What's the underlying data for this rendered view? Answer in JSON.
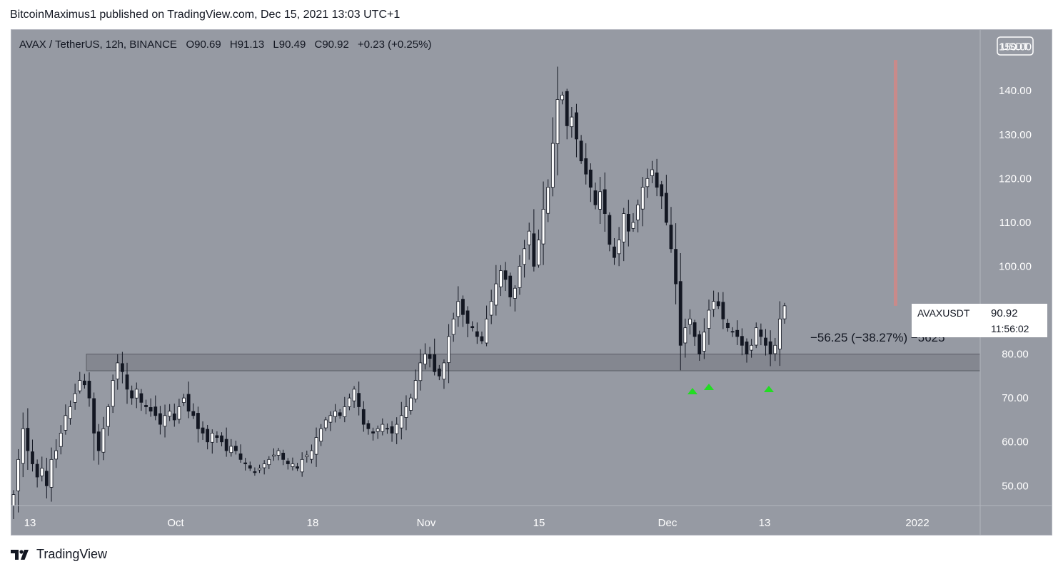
{
  "header": {
    "published_text": "BitcoinMaximus1 published on TradingView.com, Dec 15, 2021 13:03 UTC+1"
  },
  "legend": {
    "symbol": "AVAX / TetherUS, 12h, BINANCE",
    "o_label": "O",
    "o": "90.69",
    "h_label": "H",
    "h": "91.13",
    "l_label": "L",
    "l": "90.49",
    "c_label": "C",
    "c": "90.92",
    "change": "+0.23 (+0.25%)"
  },
  "currency_badge": "USDT",
  "price_tag": {
    "symbol": "AVAXUSDT",
    "price": "90.92",
    "countdown": "11:56:02"
  },
  "measure_label": "−56.25 (−38.27%) −5625",
  "footer": {
    "brand": "TradingView"
  },
  "colors": {
    "background": "#969aa3",
    "candle": "#131722",
    "candle_up_fill": "#ffffff",
    "support_zone": "#7d8089",
    "measure_bar": "#c98a8a",
    "support_arrow": "#22dd22"
  },
  "chart_data": {
    "type": "candlestick",
    "title": "AVAX / TetherUS, 12h, BINANCE",
    "ylim": [
      45.5,
      154
    ],
    "y_ticks": [
      "150.00",
      "140.00",
      "130.00",
      "120.00",
      "110.00",
      "100.00",
      "80.00",
      "70.00",
      "60.00",
      "50.00"
    ],
    "x_ticks": [
      "13",
      "Oct",
      "18",
      "Nov",
      "15",
      "Dec",
      "13",
      "2022"
    ],
    "support_zone": {
      "low": 76.2,
      "high": 80.0
    },
    "measure_bar": {
      "from": 147.0,
      "to": 91.0
    },
    "support_arrows": 3,
    "closes": [
      48,
      56,
      63,
      58,
      55,
      52,
      54,
      50,
      56,
      58,
      62,
      66,
      68,
      71,
      74,
      73,
      70,
      62,
      58,
      63,
      68,
      74,
      78,
      76,
      72,
      70,
      72,
      69,
      68,
      67,
      66,
      64,
      66,
      67,
      65,
      68,
      70,
      67,
      66,
      63,
      62,
      60,
      62,
      61,
      60,
      58,
      59,
      58,
      56,
      55,
      54,
      53,
      54,
      55,
      56,
      57,
      58,
      56,
      55,
      55,
      54,
      56,
      57,
      58,
      61,
      63,
      65,
      66,
      67,
      66,
      68,
      70,
      72,
      68,
      64,
      63,
      62,
      63,
      64,
      63,
      62,
      64,
      66,
      68,
      70,
      74,
      78,
      80,
      79,
      76,
      75,
      78,
      84,
      88,
      92,
      89,
      87,
      86,
      84,
      83,
      88,
      92,
      96,
      99,
      97,
      93,
      95,
      100,
      104,
      108,
      100,
      106,
      113,
      118,
      128,
      138,
      139,
      132,
      134,
      129,
      124,
      121,
      118,
      114,
      117,
      112,
      105,
      102,
      106,
      112,
      108,
      110,
      114,
      118,
      120,
      122,
      118,
      116,
      110,
      104,
      96,
      82,
      86,
      88,
      84,
      80,
      85,
      90,
      92,
      91,
      88,
      86,
      85,
      84,
      82,
      80,
      82,
      86,
      84,
      82,
      80,
      82,
      88,
      91
    ]
  }
}
